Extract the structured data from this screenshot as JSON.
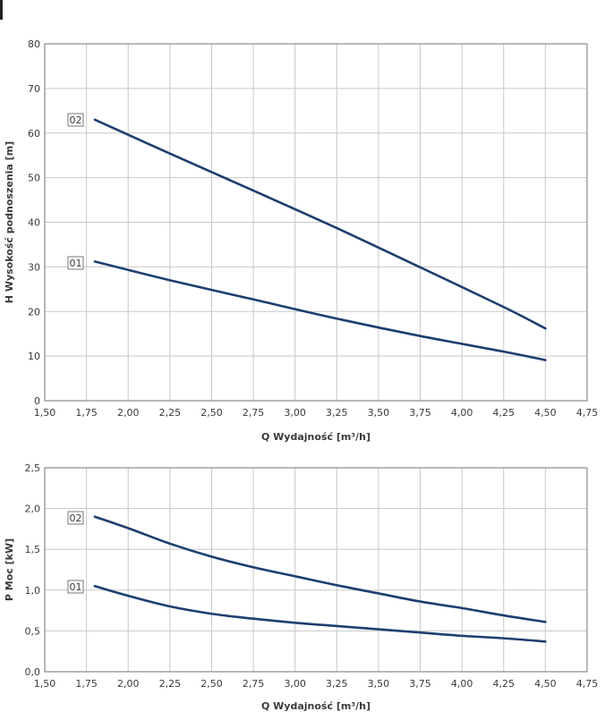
{
  "chart_data": [
    {
      "type": "line",
      "xlabel": "Q Wydajność [m³/h]",
      "ylabel": "H Wysokość podnoszenia [m]",
      "xlim": [
        1.5,
        4.75
      ],
      "ylim": [
        0,
        80
      ],
      "x_ticks": [
        "1,50",
        "1,75",
        "2,00",
        "2,25",
        "2,50",
        "2,75",
        "3,00",
        "3,25",
        "3,50",
        "3,75",
        "4,00",
        "4,25",
        "4,50",
        "4,75"
      ],
      "y_ticks": [
        "0",
        "10",
        "20",
        "30",
        "40",
        "50",
        "60",
        "70",
        "80"
      ],
      "grid": true,
      "series": [
        {
          "name": "01",
          "x": [
            1.8,
            2.25,
            2.75,
            3.25,
            3.75,
            4.25,
            4.5
          ],
          "y": [
            31.2,
            27.0,
            22.7,
            18.4,
            14.5,
            11.0,
            9.1
          ]
        },
        {
          "name": "02",
          "x": [
            1.8,
            2.25,
            2.75,
            3.25,
            3.75,
            4.25,
            4.5
          ],
          "y": [
            63.0,
            55.4,
            47.1,
            38.7,
            29.9,
            21.0,
            16.2
          ]
        }
      ]
    },
    {
      "type": "line",
      "xlabel": "Q Wydajność [m³/h]",
      "ylabel": "P Moc [kW]",
      "xlim": [
        1.5,
        4.75
      ],
      "ylim": [
        0,
        2.5
      ],
      "x_ticks": [
        "1,50",
        "1,75",
        "2,00",
        "2,25",
        "2,50",
        "2,75",
        "3,00",
        "3,25",
        "3,50",
        "3,75",
        "4,00",
        "4,25",
        "4,50",
        "4,75"
      ],
      "y_ticks": [
        "0,0",
        "0,5",
        "1,0",
        "1,5",
        "2,0",
        "2,5"
      ],
      "grid": true,
      "series": [
        {
          "name": "01",
          "x": [
            1.8,
            2.0,
            2.25,
            2.5,
            2.75,
            3.0,
            3.25,
            3.5,
            3.75,
            4.0,
            4.25,
            4.5
          ],
          "y": [
            1.05,
            0.93,
            0.8,
            0.71,
            0.65,
            0.6,
            0.56,
            0.52,
            0.48,
            0.44,
            0.41,
            0.37
          ]
        },
        {
          "name": "02",
          "x": [
            1.8,
            2.0,
            2.25,
            2.5,
            2.75,
            3.0,
            3.25,
            3.5,
            3.75,
            4.0,
            4.25,
            4.5
          ],
          "y": [
            1.9,
            1.76,
            1.57,
            1.41,
            1.28,
            1.17,
            1.06,
            0.96,
            0.86,
            0.78,
            0.69,
            0.61
          ]
        }
      ]
    }
  ],
  "colors": {
    "line": "#1d3f6e",
    "grid": "#c8c8c8",
    "frame": "#8a8a8a",
    "text": "#3a3a3a"
  }
}
